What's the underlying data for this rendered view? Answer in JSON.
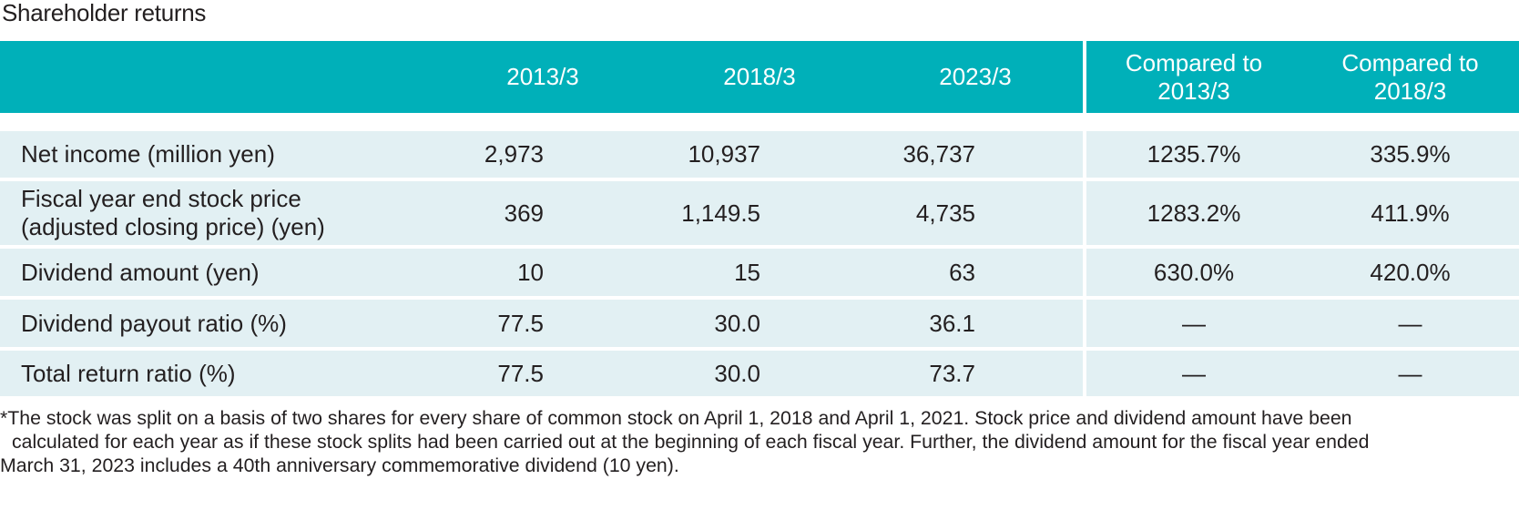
{
  "title": "Shareholder returns",
  "header": {
    "label": "",
    "years": [
      "2013/3",
      "2018/3",
      "2023/3"
    ],
    "compare": [
      {
        "line1": "Compared to",
        "line2": "2013/3"
      },
      {
        "line1": "Compared to",
        "line2": "2018/3"
      }
    ]
  },
  "rows": [
    {
      "label": "Net income (million yen)",
      "label2": "",
      "v1": "2,973",
      "v2": "10,937",
      "v3": "36,737",
      "c1": "1235.7%",
      "c2": "335.9%"
    },
    {
      "label": "Fiscal year end stock price",
      "label2": "(adjusted closing price) (yen)",
      "v1": "369",
      "v2": "1,149.5",
      "v3": "4,735",
      "c1": "1283.2%",
      "c2": "411.9%"
    },
    {
      "label": "Dividend amount (yen)",
      "label2": "",
      "v1": "10",
      "v2": "15",
      "v3": "63",
      "c1": "630.0%",
      "c2": "420.0%"
    },
    {
      "label": "Dividend payout ratio (%)",
      "label2": "",
      "v1": "77.5",
      "v2": "30.0",
      "v3": "36.1",
      "c1": "—",
      "c2": "—"
    },
    {
      "label": "Total return ratio (%)",
      "label2": "",
      "v1": "77.5",
      "v2": "30.0",
      "v3": "73.7",
      "c1": "—",
      "c2": "—"
    }
  ],
  "footnote": [
    "*The stock was split on a basis of two shares for every share of common stock on April 1, 2018 and April 1, 2021. Stock price and dividend amount have been",
    "calculated for each year as if these stock splits had been carried out at the beginning of each fiscal year. Further, the dividend amount for the fiscal year ended",
    "March 31, 2023 includes a 40th anniversary commemorative dividend (10 yen)."
  ],
  "colors": {
    "header_bg": "#00b0b9",
    "row_bg": "#e2f0f3",
    "text": "#231f20"
  }
}
